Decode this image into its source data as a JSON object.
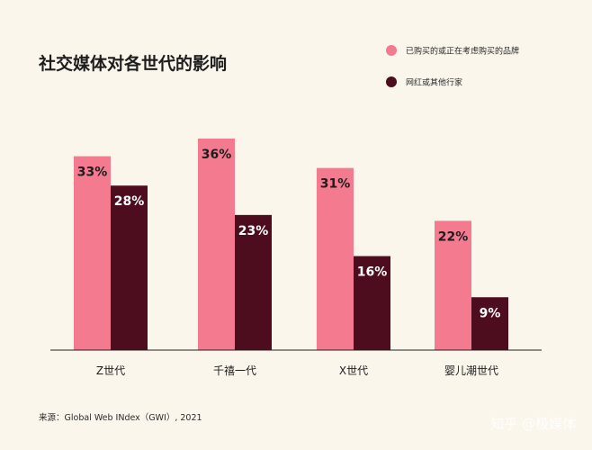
{
  "chart_data": {
    "type": "bar",
    "title": "社交媒体对各世代的影响",
    "categories": [
      "Z世代",
      "千禧一代",
      "X世代",
      "婴儿潮世代"
    ],
    "series": [
      {
        "name": "已购买的或正在考虑购买的品牌",
        "values": [
          33,
          36,
          31,
          22
        ],
        "color": "#f47a90",
        "label_color": "#1d1d1d"
      },
      {
        "name": "网红或其他行家",
        "values": [
          28,
          23,
          16,
          9
        ],
        "color": "#4e0d1f",
        "label_color": "#ffffff"
      }
    ],
    "value_suffix": "%",
    "ylim": [
      0,
      36
    ],
    "grid": false,
    "legend_position": "top-right"
  },
  "source": "来源：Global Web INdex（GWI）, 2021",
  "watermark": "知乎 @极媒体"
}
